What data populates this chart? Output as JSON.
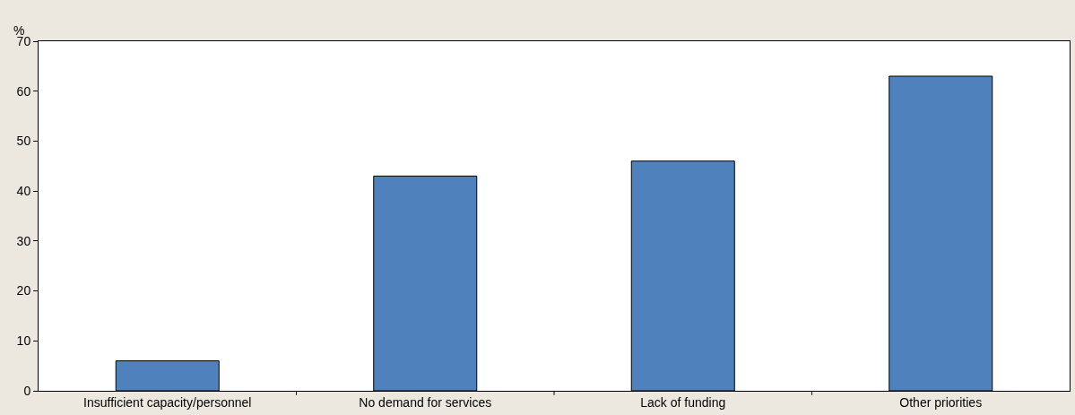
{
  "chart_data": {
    "type": "bar",
    "ylabel": "%",
    "categories": [
      "Insufficient capacity/personnel",
      "No demand for services",
      "Lack of funding",
      "Other priorities"
    ],
    "values": [
      6,
      43,
      46,
      63
    ],
    "color": "#4f81bd",
    "ylim": [
      0,
      70
    ],
    "yticks": [
      0,
      10,
      20,
      30,
      40,
      50,
      60,
      70
    ]
  }
}
